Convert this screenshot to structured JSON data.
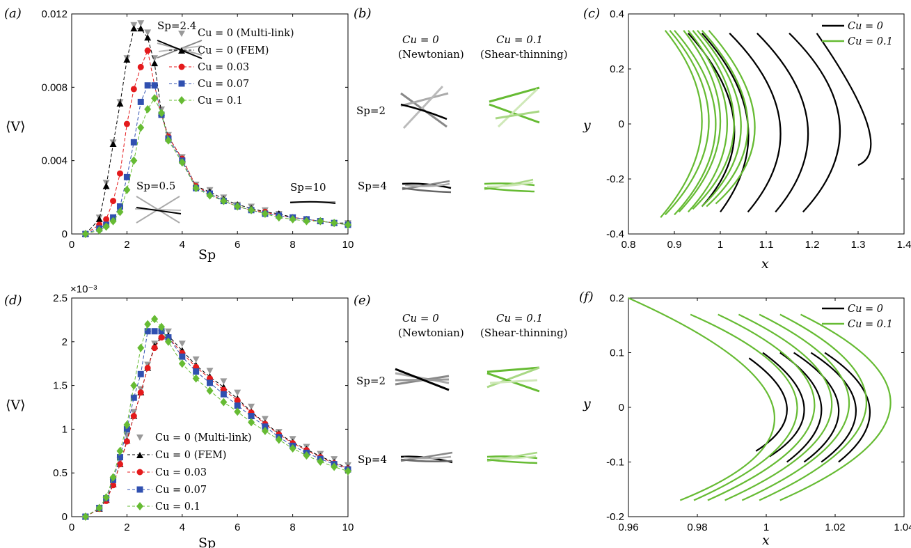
{
  "chart_data": [
    {
      "panel": "(a)",
      "type": "line",
      "xlabel": "Sp",
      "ylabel": "⟨V⟩",
      "xlim": [
        0,
        10
      ],
      "ylim": [
        0,
        0.012
      ],
      "xticks": [
        "0",
        "2",
        "4",
        "6",
        "8",
        "10"
      ],
      "yticks": [
        "0",
        "0.004",
        "0.008",
        "0.012"
      ],
      "legend_position": "top-right",
      "x": [
        0.5,
        1.0,
        1.25,
        1.5,
        1.75,
        2.0,
        2.25,
        2.5,
        2.75,
        3.0,
        3.25,
        3.5,
        4.0,
        4.5,
        5.0,
        5.5,
        6.0,
        6.5,
        7.0,
        7.5,
        8.0,
        8.5,
        9.0,
        9.5,
        10.0
      ],
      "series": [
        {
          "name": "Cu = 0 (Multi-link)",
          "color": "#999999",
          "marker": "triangle-down",
          "line": false,
          "values": [
            0.0,
            0.0009,
            0.0028,
            0.005,
            0.0072,
            0.0096,
            0.0114,
            0.0115,
            0.011,
            0.0096,
            0.0068,
            0.0054,
            0.0042,
            0.0027,
            0.0024,
            0.002,
            0.0016,
            0.0015,
            0.0013,
            0.0011,
            0.0009,
            0.0008,
            0.0007,
            0.0006,
            0.0006
          ]
        },
        {
          "name": "Cu = 0 (FEM)",
          "color": "#000000",
          "marker": "triangle-up",
          "line": true,
          "values": [
            0.0,
            0.0008,
            0.0026,
            0.0049,
            0.0071,
            0.0095,
            0.0112,
            0.0112,
            0.0107,
            0.0093,
            0.0066,
            0.0053,
            0.0041,
            0.0026,
            0.0023,
            0.0019,
            0.0016,
            0.0014,
            0.0012,
            0.0011,
            0.0009,
            0.0008,
            0.0007,
            0.0006,
            0.0006
          ]
        },
        {
          "name": "Cu = 0.03",
          "color": "#e41a1c",
          "marker": "circle",
          "line": true,
          "values": [
            0.0,
            0.0005,
            0.0008,
            0.0018,
            0.0033,
            0.006,
            0.0079,
            0.0091,
            0.01,
            0.0081,
            0.0065,
            0.0053,
            0.0041,
            0.0026,
            0.0022,
            0.0018,
            0.0015,
            0.0013,
            0.0012,
            0.001,
            0.0009,
            0.0008,
            0.0007,
            0.0006,
            0.0005
          ]
        },
        {
          "name": "Cu = 0.07",
          "color": "#3050b0",
          "marker": "square",
          "line": true,
          "values": [
            0.0,
            0.0003,
            0.0005,
            0.0009,
            0.0015,
            0.0031,
            0.005,
            0.0072,
            0.0081,
            0.0081,
            0.0065,
            0.0052,
            0.004,
            0.0025,
            0.0022,
            0.0018,
            0.0015,
            0.0013,
            0.0011,
            0.001,
            0.0009,
            0.0008,
            0.0007,
            0.0006,
            0.0005
          ]
        },
        {
          "name": "Cu = 0.1",
          "color": "#66bb33",
          "marker": "diamond",
          "line": true,
          "values": [
            0.0,
            0.0002,
            0.0004,
            0.0007,
            0.0012,
            0.0024,
            0.004,
            0.0058,
            0.0068,
            0.0074,
            0.0066,
            0.0051,
            0.0039,
            0.0025,
            0.0021,
            0.0018,
            0.0015,
            0.0013,
            0.0011,
            0.0009,
            0.0008,
            0.0007,
            0.0007,
            0.0006,
            0.0005
          ]
        }
      ],
      "annotations": [
        "Sp=2.4",
        "Sp=0.5",
        "Sp=10"
      ]
    },
    {
      "panel": "(d)",
      "type": "line",
      "xlabel": "Sp",
      "ylabel": "⟨V⟩",
      "xlim": [
        0,
        10
      ],
      "ylim": [
        0,
        2.5
      ],
      "y_multiplier": "×10⁻³",
      "xticks": [
        "0",
        "2",
        "4",
        "6",
        "8",
        "10"
      ],
      "yticks": [
        "0",
        "0.5",
        "1",
        "1.5",
        "2",
        "2.5"
      ],
      "legend_position": "bottom-left",
      "x": [
        0.5,
        1.0,
        1.25,
        1.5,
        1.75,
        2.0,
        2.25,
        2.5,
        2.75,
        3.0,
        3.25,
        3.5,
        4.0,
        4.5,
        5.0,
        5.5,
        6.0,
        6.5,
        7.0,
        7.5,
        8.0,
        8.5,
        9.0,
        9.5,
        10.0
      ],
      "series": [
        {
          "name": "Cu = 0 (Multi-link)",
          "color": "#999999",
          "marker": "triangle-down",
          "line": false,
          "values": [
            0.0,
            0.1,
            0.2,
            0.4,
            0.65,
            0.93,
            1.2,
            1.46,
            1.74,
            1.98,
            2.1,
            2.12,
            1.98,
            1.8,
            1.67,
            1.55,
            1.42,
            1.26,
            1.12,
            0.97,
            0.89,
            0.8,
            0.72,
            0.66,
            0.59
          ]
        },
        {
          "name": "Cu = 0 (FEM)",
          "color": "#000000",
          "marker": "triangle-up",
          "line": true,
          "values": [
            0.0,
            0.09,
            0.19,
            0.37,
            0.6,
            0.87,
            1.15,
            1.42,
            1.7,
            1.95,
            2.06,
            2.07,
            1.9,
            1.73,
            1.6,
            1.48,
            1.35,
            1.2,
            1.07,
            0.95,
            0.85,
            0.77,
            0.69,
            0.62,
            0.56
          ]
        },
        {
          "name": "Cu = 0.03",
          "color": "#e41a1c",
          "marker": "circle",
          "line": true,
          "values": [
            0.0,
            0.09,
            0.18,
            0.36,
            0.6,
            0.86,
            1.15,
            1.42,
            1.7,
            1.93,
            2.05,
            2.05,
            1.87,
            1.71,
            1.58,
            1.45,
            1.33,
            1.19,
            1.06,
            0.94,
            0.84,
            0.76,
            0.68,
            0.61,
            0.55
          ]
        },
        {
          "name": "Cu = 0.07",
          "color": "#3050b0",
          "marker": "square",
          "line": true,
          "values": [
            0.0,
            0.1,
            0.21,
            0.42,
            0.68,
            1.0,
            1.36,
            1.63,
            2.12,
            2.12,
            2.12,
            2.05,
            1.83,
            1.66,
            1.53,
            1.4,
            1.27,
            1.15,
            1.03,
            0.91,
            0.81,
            0.73,
            0.66,
            0.6,
            0.54
          ]
        },
        {
          "name": "Cu = 0.1",
          "color": "#66bb33",
          "marker": "diamond",
          "line": true,
          "values": [
            0.0,
            0.1,
            0.22,
            0.45,
            0.75,
            1.05,
            1.5,
            1.93,
            2.2,
            2.26,
            2.17,
            2.0,
            1.75,
            1.58,
            1.44,
            1.31,
            1.2,
            1.08,
            0.98,
            0.88,
            0.78,
            0.7,
            0.63,
            0.57,
            0.52
          ]
        }
      ]
    },
    {
      "panel": "(c)",
      "type": "line",
      "xlabel": "x",
      "ylabel": "y",
      "xlim": [
        0.8,
        1.4
      ],
      "ylim": [
        -0.4,
        0.4
      ],
      "xticks": [
        "0.8",
        "0.9",
        "1",
        "1.1",
        "1.2",
        "1.3",
        "1.4"
      ],
      "yticks": [
        "-0.4",
        "-0.2",
        "0",
        "0.2",
        "0.4"
      ],
      "legend_position": "top-right",
      "series": [
        {
          "name": "Cu = 0",
          "color": "#000000",
          "curves": [
            {
              "x_top": 0.93,
              "y_top": 0.33,
              "x_mid": 1.03,
              "x_bot": 0.96,
              "y_bot": -0.3
            },
            {
              "x_top": 0.96,
              "y_top": 0.33,
              "x_mid": 1.06,
              "x_bot": 1.0,
              "y_bot": -0.32
            },
            {
              "x_top": 1.02,
              "y_top": 0.33,
              "x_mid": 1.13,
              "x_bot": 1.06,
              "y_bot": -0.32
            },
            {
              "x_top": 1.08,
              "y_top": 0.33,
              "x_mid": 1.19,
              "x_bot": 1.12,
              "y_bot": -0.32
            },
            {
              "x_top": 1.15,
              "y_top": 0.33,
              "x_mid": 1.26,
              "x_bot": 1.18,
              "y_bot": -0.32
            },
            {
              "x_top": 1.21,
              "y_top": 0.33,
              "x_mid": 1.32,
              "x_bot": 1.3,
              "y_bot": -0.15
            }
          ]
        },
        {
          "name": "Cu = 0.1",
          "color": "#66bb33",
          "curves": [
            {
              "x_top": 0.88,
              "y_top": 0.34,
              "x_mid": 0.96,
              "x_bot": 0.87,
              "y_bot": -0.34
            },
            {
              "x_top": 0.89,
              "y_top": 0.34,
              "x_mid": 0.975,
              "x_bot": 0.88,
              "y_bot": -0.33
            },
            {
              "x_top": 0.9,
              "y_top": 0.34,
              "x_mid": 0.99,
              "x_bot": 0.9,
              "y_bot": -0.33
            },
            {
              "x_top": 0.92,
              "y_top": 0.34,
              "x_mid": 1.0,
              "x_bot": 0.91,
              "y_bot": -0.32
            },
            {
              "x_top": 0.93,
              "y_top": 0.34,
              "x_mid": 1.015,
              "x_bot": 0.93,
              "y_bot": -0.32
            },
            {
              "x_top": 0.94,
              "y_top": 0.34,
              "x_mid": 1.03,
              "x_bot": 0.94,
              "y_bot": -0.31
            },
            {
              "x_top": 0.95,
              "y_top": 0.34,
              "x_mid": 1.045,
              "x_bot": 0.96,
              "y_bot": -0.3
            },
            {
              "x_top": 0.96,
              "y_top": 0.34,
              "x_mid": 1.06,
              "x_bot": 0.97,
              "y_bot": -0.3
            },
            {
              "x_top": 0.975,
              "y_top": 0.34,
              "x_mid": 1.075,
              "x_bot": 0.99,
              "y_bot": -0.29
            }
          ]
        }
      ]
    },
    {
      "panel": "(f)",
      "type": "line",
      "xlabel": "x",
      "ylabel": "y",
      "xlim": [
        0.96,
        1.04
      ],
      "ylim": [
        -0.2,
        0.2
      ],
      "xticks": [
        "0.96",
        "0.98",
        "1",
        "1.02",
        "1.04"
      ],
      "yticks": [
        "-0.2",
        "-0.1",
        "0",
        "0.1",
        "0.2"
      ],
      "legend_position": "top-right",
      "series": [
        {
          "name": "Cu = 0",
          "color": "#000000",
          "curves": [
            {
              "x_top": 0.995,
              "y_top": 0.09,
              "x_mid": 1.006,
              "x_bot": 0.997,
              "y_bot": -0.08
            },
            {
              "x_top": 0.999,
              "y_top": 0.1,
              "x_mid": 1.011,
              "x_bot": 1.001,
              "y_bot": -0.09
            },
            {
              "x_top": 1.004,
              "y_top": 0.1,
              "x_mid": 1.016,
              "x_bot": 1.006,
              "y_bot": -0.1
            },
            {
              "x_top": 1.008,
              "y_top": 0.1,
              "x_mid": 1.021,
              "x_bot": 1.011,
              "y_bot": -0.1
            },
            {
              "x_top": 1.013,
              "y_top": 0.1,
              "x_mid": 1.026,
              "x_bot": 1.016,
              "y_bot": -0.1
            },
            {
              "x_top": 1.017,
              "y_top": 0.1,
              "x_mid": 1.03,
              "x_bot": 1.021,
              "y_bot": -0.1
            }
          ]
        },
        {
          "name": "Cu = 0.1",
          "color": "#66bb33",
          "curves": [
            {
              "x_top": 0.96,
              "y_top": 0.2,
              "x_mid": 1.002,
              "x_bot": 0.975,
              "y_bot": -0.17
            },
            {
              "x_top": 0.978,
              "y_top": 0.17,
              "x_mid": 1.009,
              "x_bot": 0.979,
              "y_bot": -0.17
            },
            {
              "x_top": 0.986,
              "y_top": 0.17,
              "x_mid": 1.014,
              "x_bot": 0.983,
              "y_bot": -0.17
            },
            {
              "x_top": 0.992,
              "y_top": 0.17,
              "x_mid": 1.019,
              "x_bot": 0.988,
              "y_bot": -0.17
            },
            {
              "x_top": 0.998,
              "y_top": 0.17,
              "x_mid": 1.024,
              "x_bot": 0.993,
              "y_bot": -0.17
            },
            {
              "x_top": 1.004,
              "y_top": 0.17,
              "x_mid": 1.029,
              "x_bot": 0.998,
              "y_bot": -0.17
            },
            {
              "x_top": 1.01,
              "y_top": 0.17,
              "x_mid": 1.036,
              "x_bot": 1.004,
              "y_bot": -0.17
            }
          ]
        }
      ]
    }
  ],
  "panels": {
    "a": "(a)",
    "b": "(b)",
    "c": "(c)",
    "d": "(d)",
    "e": "(e)",
    "f": "(f)"
  },
  "axis_labels": {
    "sp": "Sp",
    "v": "⟨V⟩",
    "x": "x",
    "y": "y"
  },
  "legend_ad": {
    "multilink": "Cu = 0 (Multi-link)",
    "fem": "Cu = 0 (FEM)",
    "cu003": "Cu = 0.03",
    "cu007": "Cu = 0.07",
    "cu01": "Cu = 0.1"
  },
  "legend_cf": {
    "cu0": "Cu = 0",
    "cu01": "Cu = 0.1"
  },
  "annotations_a": {
    "sp24": "Sp=2.4",
    "sp05": "Sp=0.5",
    "sp10": "Sp=10"
  },
  "exponent_d": "×10⁻³",
  "shapes_panel": {
    "col1_title": "Cu = 0",
    "col1_sub": "(Newtonian)",
    "col2_title": "Cu = 0.1",
    "col2_sub": "(Shear-thinning)",
    "row1": "Sp=2",
    "row2": "Sp=4"
  },
  "colors": {
    "black": "#000000",
    "gray": "#999999",
    "red": "#e41a1c",
    "blue": "#3050b0",
    "green": "#66bb33"
  }
}
